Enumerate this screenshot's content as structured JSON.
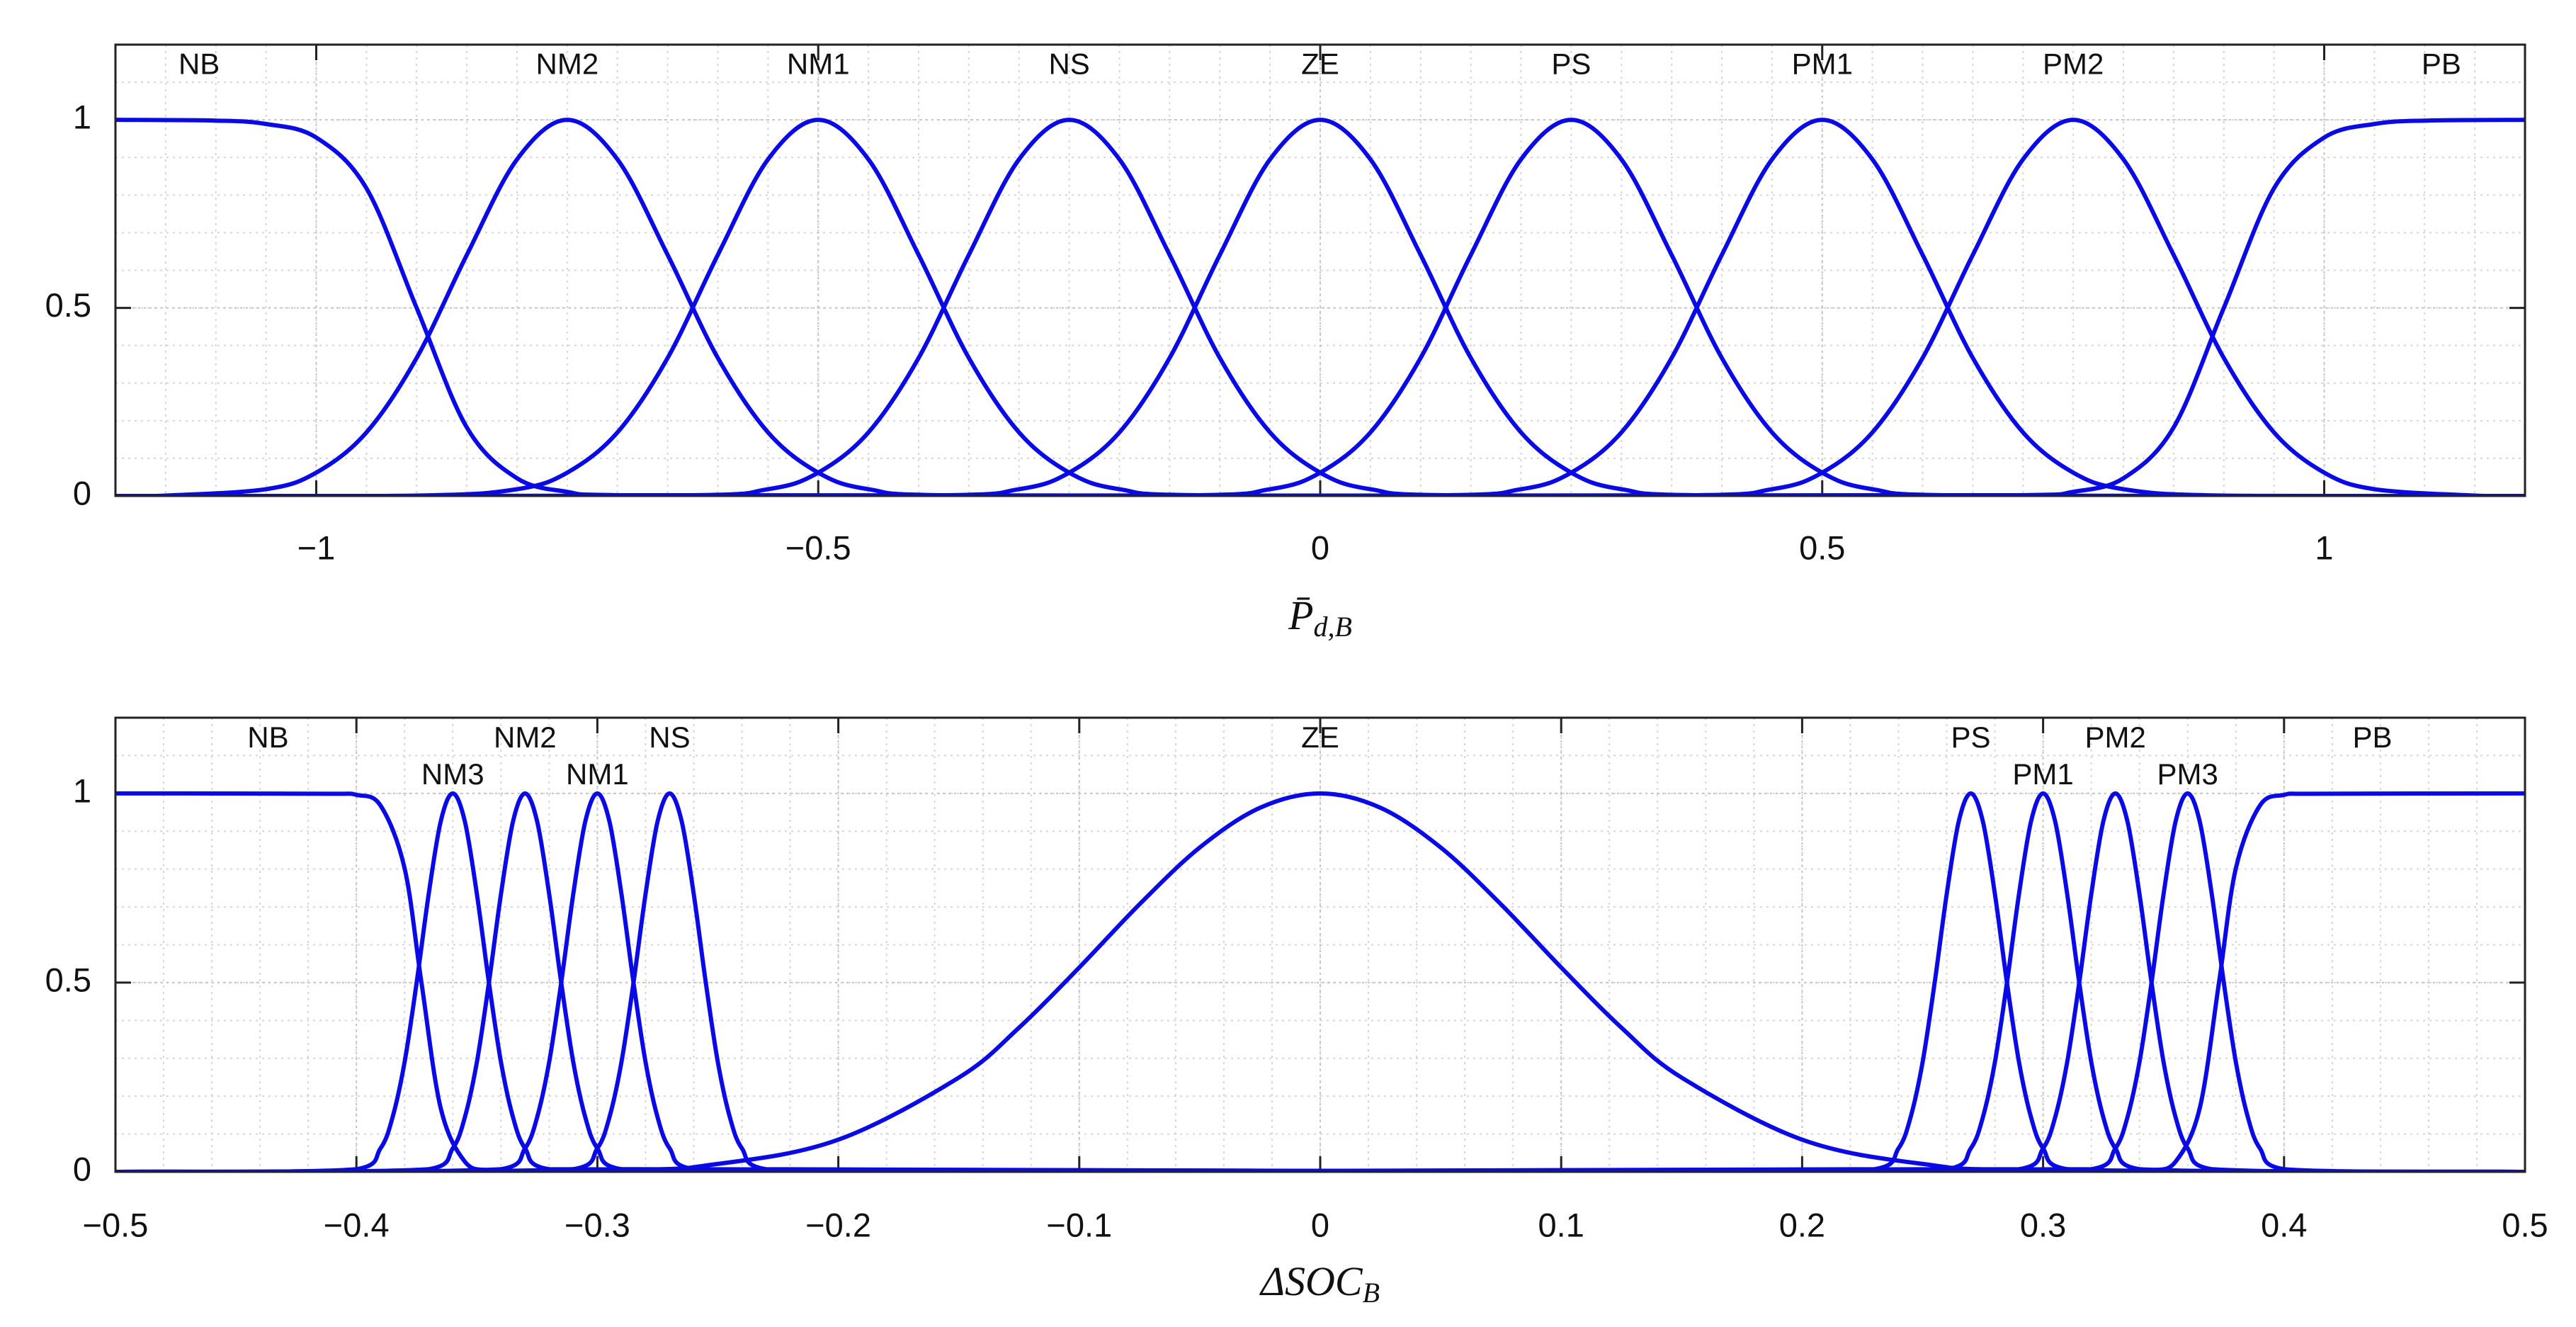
{
  "chart_data": [
    {
      "type": "line",
      "xlabel": {
        "main": "P̄",
        "sub": "d,B"
      },
      "xlim": [
        -1.2,
        1.2
      ],
      "xticks": [
        {
          "value": -1,
          "label": "−1"
        },
        {
          "value": -0.5,
          "label": "−0.5"
        },
        0,
        0.5,
        1
      ],
      "ylim": [
        0,
        1.2
      ],
      "yticks": [
        0,
        0.5,
        1
      ],
      "grid": true,
      "minor_grid": true,
      "minor_divisions": {
        "x": 10,
        "y": 5
      },
      "series": [
        {
          "name": "NB",
          "color": "#0a0ae6",
          "x": [
            -1.2,
            -1.1,
            -1.05,
            -1,
            -0.95,
            -0.9,
            -0.85,
            -0.8,
            -0.75,
            -0.7,
            1.2
          ],
          "values": [
            1,
            0.998,
            0.989,
            0.953,
            0.818,
            0.5,
            0.182,
            0.047,
            0.011,
            0.002,
            0
          ]
        },
        {
          "name": "NM2",
          "color": "#0a0ae6",
          "x": [
            -1.2,
            -1.15,
            -1.05,
            -1,
            -0.95,
            -0.9,
            -0.85,
            -0.8,
            -0.75,
            -0.7,
            -0.65,
            -0.6,
            -0.55,
            -0.5,
            -0.45,
            -0.35,
            1.2
          ],
          "values": [
            0,
            0.001,
            0.018,
            0.062,
            0.169,
            0.367,
            0.641,
            0.895,
            1,
            0.895,
            0.641,
            0.367,
            0.169,
            0.062,
            0.018,
            0.001,
            0
          ]
        },
        {
          "name": "NM1",
          "color": "#0a0ae6",
          "x": [
            -1.2,
            -0.9,
            -0.8,
            -0.75,
            -0.7,
            -0.65,
            -0.6,
            -0.55,
            -0.5,
            -0.45,
            -0.4,
            -0.35,
            -0.3,
            -0.25,
            -0.2,
            -0.1,
            1.2
          ],
          "values": [
            0,
            0.001,
            0.018,
            0.062,
            0.169,
            0.367,
            0.641,
            0.895,
            1,
            0.895,
            0.641,
            0.367,
            0.169,
            0.062,
            0.018,
            0.001,
            0
          ]
        },
        {
          "name": "NS",
          "color": "#0a0ae6",
          "x": [
            -1.2,
            -0.65,
            -0.55,
            -0.5,
            -0.45,
            -0.4,
            -0.35,
            -0.3,
            -0.25,
            -0.2,
            -0.15,
            -0.1,
            -0.05,
            0,
            0.05,
            0.15,
            1.2
          ],
          "values": [
            0,
            0.001,
            0.018,
            0.062,
            0.169,
            0.367,
            0.641,
            0.895,
            1,
            0.895,
            0.641,
            0.367,
            0.169,
            0.062,
            0.018,
            0.001,
            0
          ]
        },
        {
          "name": "ZE",
          "color": "#0a0ae6",
          "x": [
            -1.2,
            -0.4,
            -0.3,
            -0.25,
            -0.2,
            -0.15,
            -0.1,
            -0.05,
            0,
            0.05,
            0.1,
            0.15,
            0.2,
            0.25,
            0.3,
            0.4,
            1.2
          ],
          "values": [
            0,
            0.001,
            0.018,
            0.062,
            0.169,
            0.367,
            0.641,
            0.895,
            1,
            0.895,
            0.641,
            0.367,
            0.169,
            0.062,
            0.018,
            0.001,
            0
          ]
        },
        {
          "name": "PS",
          "color": "#0a0ae6",
          "x": [
            -1.2,
            -0.15,
            -0.05,
            0,
            0.05,
            0.1,
            0.15,
            0.2,
            0.25,
            0.3,
            0.35,
            0.4,
            0.45,
            0.5,
            0.55,
            0.65,
            1.2
          ],
          "values": [
            0,
            0.001,
            0.018,
            0.062,
            0.169,
            0.367,
            0.641,
            0.895,
            1,
            0.895,
            0.641,
            0.367,
            0.169,
            0.062,
            0.018,
            0.001,
            0
          ]
        },
        {
          "name": "PM1",
          "color": "#0a0ae6",
          "x": [
            -1.2,
            0.1,
            0.2,
            0.25,
            0.3,
            0.35,
            0.4,
            0.45,
            0.5,
            0.55,
            0.6,
            0.65,
            0.7,
            0.75,
            0.8,
            0.9,
            1.2
          ],
          "values": [
            0,
            0.001,
            0.018,
            0.062,
            0.169,
            0.367,
            0.641,
            0.895,
            1,
            0.895,
            0.641,
            0.367,
            0.169,
            0.062,
            0.018,
            0.001,
            0
          ]
        },
        {
          "name": "PM2",
          "color": "#0a0ae6",
          "x": [
            -1.2,
            0.35,
            0.45,
            0.5,
            0.55,
            0.6,
            0.65,
            0.7,
            0.75,
            0.8,
            0.85,
            0.9,
            0.95,
            1,
            1.05,
            1.15,
            1.2
          ],
          "values": [
            0,
            0.001,
            0.018,
            0.062,
            0.169,
            0.367,
            0.641,
            0.895,
            1,
            0.895,
            0.641,
            0.367,
            0.169,
            0.062,
            0.018,
            0.001,
            0
          ]
        },
        {
          "name": "PB",
          "color": "#0a0ae6",
          "x": [
            -1.2,
            0.7,
            0.75,
            0.8,
            0.85,
            0.9,
            0.95,
            1,
            1.05,
            1.1,
            1.2
          ],
          "values": [
            0,
            0.002,
            0.011,
            0.047,
            0.182,
            0.5,
            0.818,
            0.953,
            0.989,
            0.998,
            1
          ]
        }
      ]
    },
    {
      "type": "line",
      "xlabel": {
        "main": "ΔSOC",
        "sub": "B"
      },
      "xlim": [
        -0.5,
        0.5
      ],
      "xticks": [
        {
          "value": -0.5,
          "label": "−0.5"
        },
        {
          "value": -0.4,
          "label": "−0.4"
        },
        {
          "value": -0.3,
          "label": "−0.3"
        },
        {
          "value": -0.2,
          "label": "−0.2"
        },
        {
          "value": -0.1,
          "label": "−0.1"
        },
        0,
        0.1,
        0.2,
        0.3,
        0.4,
        0.5
      ],
      "ylim": [
        0,
        1.2
      ],
      "yticks": [
        0,
        0.5,
        1
      ],
      "grid": true,
      "minor_grid": true,
      "minor_divisions": {
        "x": 5,
        "y": 5
      },
      "series": [
        {
          "name": "NB",
          "color": "#0a0ae6",
          "x": [
            -0.5,
            -0.41,
            -0.4,
            -0.39,
            -0.38,
            -0.373,
            -0.365,
            -0.355,
            -0.345,
            -0.33,
            0.5
          ],
          "values": [
            1,
            0.999,
            0.996,
            0.968,
            0.802,
            0.5,
            0.168,
            0.027,
            0.004,
            0,
            0
          ]
        },
        {
          "name": "NM3",
          "color": "#0a0ae6",
          "x": [
            -0.5,
            -0.4,
            -0.39,
            -0.385,
            -0.38,
            -0.375,
            -0.37,
            -0.365,
            -0.36,
            -0.355,
            -0.35,
            -0.345,
            -0.34,
            -0.335,
            -0.33,
            -0.32,
            0.5
          ],
          "values": [
            0,
            0.007,
            0.062,
            0.144,
            0.29,
            0.5,
            0.734,
            0.926,
            1,
            0.926,
            0.734,
            0.5,
            0.29,
            0.144,
            0.062,
            0.007,
            0
          ]
        },
        {
          "name": "NM2",
          "color": "#0a0ae6",
          "x": [
            -0.5,
            -0.37,
            -0.36,
            -0.355,
            -0.35,
            -0.345,
            -0.34,
            -0.335,
            -0.33,
            -0.325,
            -0.32,
            -0.315,
            -0.31,
            -0.305,
            -0.3,
            -0.29,
            0.5
          ],
          "values": [
            0,
            0.007,
            0.062,
            0.144,
            0.29,
            0.5,
            0.734,
            0.926,
            1,
            0.926,
            0.734,
            0.5,
            0.29,
            0.144,
            0.062,
            0.007,
            0
          ]
        },
        {
          "name": "NM1",
          "color": "#0a0ae6",
          "x": [
            -0.5,
            -0.34,
            -0.33,
            -0.325,
            -0.32,
            -0.315,
            -0.31,
            -0.305,
            -0.3,
            -0.295,
            -0.29,
            -0.285,
            -0.28,
            -0.275,
            -0.27,
            -0.26,
            0.5
          ],
          "values": [
            0,
            0.007,
            0.062,
            0.144,
            0.29,
            0.5,
            0.734,
            0.926,
            1,
            0.926,
            0.734,
            0.5,
            0.29,
            0.144,
            0.062,
            0.007,
            0
          ]
        },
        {
          "name": "NS",
          "color": "#0a0ae6",
          "x": [
            -0.5,
            -0.31,
            -0.3,
            -0.295,
            -0.29,
            -0.285,
            -0.28,
            -0.275,
            -0.27,
            -0.265,
            -0.26,
            -0.255,
            -0.25,
            -0.245,
            -0.24,
            -0.23,
            0.5
          ],
          "values": [
            0,
            0.007,
            0.062,
            0.144,
            0.29,
            0.5,
            0.734,
            0.926,
            1,
            0.926,
            0.734,
            0.5,
            0.29,
            0.144,
            0.062,
            0.007,
            0
          ]
        },
        {
          "name": "ZE",
          "color": "#0a0ae6",
          "x": [
            -0.5,
            -0.3,
            -0.25,
            -0.2,
            -0.15,
            -0.125,
            -0.1,
            -0.075,
            -0.05,
            -0.025,
            0,
            0.025,
            0.05,
            0.075,
            0.1,
            0.125,
            0.15,
            0.2,
            0.25,
            0.3,
            0.5
          ],
          "values": [
            0,
            0.004,
            0.021,
            0.085,
            0.249,
            0.381,
            0.54,
            0.707,
            0.857,
            0.962,
            1,
            0.962,
            0.857,
            0.707,
            0.54,
            0.381,
            0.249,
            0.085,
            0.021,
            0.004,
            0
          ]
        },
        {
          "name": "PS",
          "color": "#0a0ae6",
          "x": [
            -0.5,
            0.23,
            0.24,
            0.245,
            0.25,
            0.255,
            0.26,
            0.265,
            0.27,
            0.275,
            0.28,
            0.285,
            0.29,
            0.295,
            0.3,
            0.31,
            0.5
          ],
          "values": [
            0,
            0.007,
            0.062,
            0.144,
            0.29,
            0.5,
            0.734,
            0.926,
            1,
            0.926,
            0.734,
            0.5,
            0.29,
            0.144,
            0.062,
            0.007,
            0
          ]
        },
        {
          "name": "PM1",
          "color": "#0a0ae6",
          "x": [
            -0.5,
            0.26,
            0.27,
            0.275,
            0.28,
            0.285,
            0.29,
            0.295,
            0.3,
            0.305,
            0.31,
            0.315,
            0.32,
            0.325,
            0.33,
            0.34,
            0.5
          ],
          "values": [
            0,
            0.007,
            0.062,
            0.144,
            0.29,
            0.5,
            0.734,
            0.926,
            1,
            0.926,
            0.734,
            0.5,
            0.29,
            0.144,
            0.062,
            0.007,
            0
          ]
        },
        {
          "name": "PM2",
          "color": "#0a0ae6",
          "x": [
            -0.5,
            0.29,
            0.3,
            0.305,
            0.31,
            0.315,
            0.32,
            0.325,
            0.33,
            0.335,
            0.34,
            0.345,
            0.35,
            0.355,
            0.36,
            0.37,
            0.5
          ],
          "values": [
            0,
            0.007,
            0.062,
            0.144,
            0.29,
            0.5,
            0.734,
            0.926,
            1,
            0.926,
            0.734,
            0.5,
            0.29,
            0.144,
            0.062,
            0.007,
            0
          ]
        },
        {
          "name": "PM3",
          "color": "#0a0ae6",
          "x": [
            -0.5,
            0.32,
            0.33,
            0.335,
            0.34,
            0.345,
            0.35,
            0.355,
            0.36,
            0.365,
            0.37,
            0.375,
            0.38,
            0.385,
            0.39,
            0.4,
            0.5
          ],
          "values": [
            0,
            0.007,
            0.062,
            0.144,
            0.29,
            0.5,
            0.734,
            0.926,
            1,
            0.926,
            0.734,
            0.5,
            0.29,
            0.144,
            0.062,
            0.007,
            0
          ]
        },
        {
          "name": "PB",
          "color": "#0a0ae6",
          "x": [
            -0.5,
            0.33,
            0.345,
            0.355,
            0.365,
            0.373,
            0.38,
            0.39,
            0.4,
            0.41,
            0.5
          ],
          "values": [
            0,
            0,
            0.004,
            0.027,
            0.168,
            0.5,
            0.802,
            0.968,
            0.996,
            0.999,
            1
          ]
        }
      ]
    }
  ]
}
